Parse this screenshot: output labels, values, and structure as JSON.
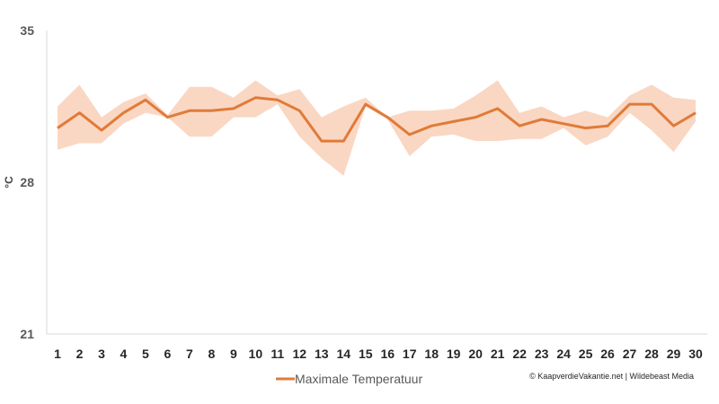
{
  "chart_data": {
    "type": "line",
    "title": "",
    "xlabel": "",
    "ylabel": "°C",
    "x": [
      1,
      2,
      3,
      4,
      5,
      6,
      7,
      8,
      9,
      10,
      11,
      12,
      13,
      14,
      15,
      16,
      17,
      18,
      19,
      20,
      21,
      22,
      23,
      24,
      25,
      26,
      27,
      28,
      29,
      30
    ],
    "xtick_labels": [
      "1",
      "2",
      "3",
      "4",
      "5",
      "6",
      "7",
      "8",
      "9",
      "10",
      "11",
      "12",
      "13",
      "14",
      "15",
      "16",
      "17",
      "18",
      "19",
      "20",
      "21",
      "22",
      "23",
      "24",
      "25",
      "26",
      "27",
      "28",
      "29",
      "30"
    ],
    "yticks": [
      "35",
      "28",
      "21"
    ],
    "ylim": [
      21,
      35
    ],
    "grid": false,
    "legend_position": "bottom-left",
    "series": [
      {
        "name": "Maximale Temperatuur",
        "color": "#E07B39",
        "values": [
          30.5,
          31.2,
          30.4,
          31.2,
          31.8,
          31.0,
          31.3,
          31.3,
          31.4,
          31.9,
          31.8,
          31.3,
          29.9,
          29.9,
          31.6,
          31.0,
          30.2,
          30.6,
          30.8,
          31.0,
          31.4,
          30.6,
          30.9,
          30.7,
          30.5,
          30.6,
          31.6,
          31.6,
          30.6,
          31.2
        ],
        "band_upper": [
          31.5,
          32.5,
          31.0,
          31.7,
          32.1,
          31.1,
          32.4,
          32.4,
          31.9,
          32.7,
          32.0,
          32.3,
          31.0,
          31.5,
          31.9,
          31.0,
          31.3,
          31.3,
          31.4,
          32.0,
          32.7,
          31.2,
          31.5,
          31.0,
          31.3,
          31.0,
          32.0,
          32.5,
          31.9,
          31.8
        ],
        "band_lower": [
          29.5,
          29.8,
          29.8,
          30.7,
          31.2,
          31.0,
          30.1,
          30.1,
          31.0,
          31.0,
          31.6,
          30.1,
          29.1,
          28.3,
          31.5,
          30.9,
          29.2,
          30.1,
          30.2,
          29.9,
          29.9,
          30.0,
          30.0,
          30.5,
          29.7,
          30.1,
          31.2,
          30.4,
          29.4,
          30.8
        ],
        "band_color": "#FAD7C3"
      }
    ]
  },
  "legend": {
    "label": "Maximale Temperatuur"
  },
  "credit": "© KaapverdieVakantie.net | Wildebeast Media"
}
